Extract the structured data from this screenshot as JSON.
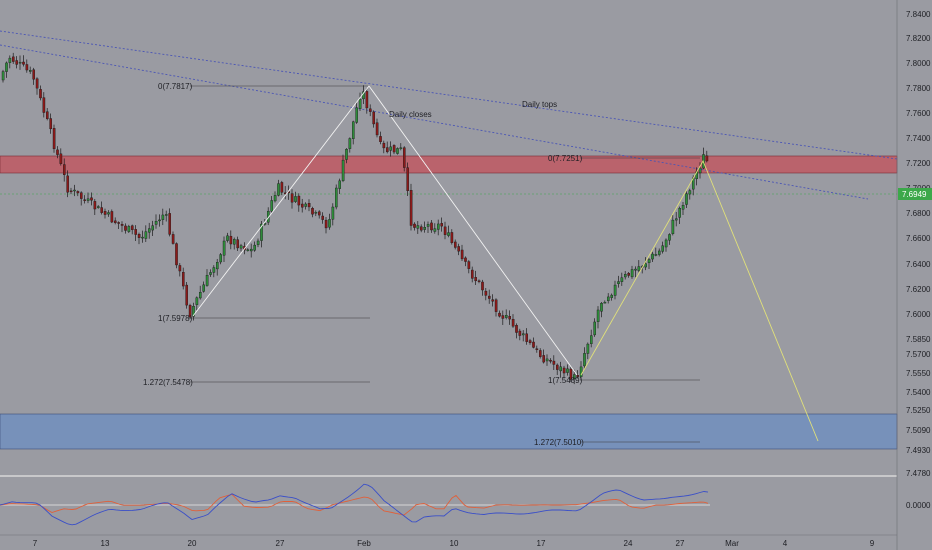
{
  "colors": {
    "background": "#9a9ba2",
    "bull": "#2e8b3a",
    "bear": "#8b1a1a",
    "resistance_zone": "#c4505a",
    "support_zone": "#6b8ec2",
    "trendline": "#4a55b5",
    "zigzag_left": "#f2f2f2",
    "zigzag_right": "#e0e07a",
    "last_price": "#3ca84a",
    "osc_k": "#3a4fc8",
    "osc_d": "#e0603a"
  },
  "price_axis": {
    "ticks": [
      "7.8400",
      "7.8200",
      "7.8000",
      "7.7800",
      "7.7600",
      "7.7400",
      "7.7200",
      "7.7000",
      "7.6800",
      "7.6600",
      "7.6400",
      "7.6200",
      "7.6000",
      "7.5850",
      "7.5700",
      "7.5550",
      "7.5400",
      "7.5250",
      "7.5090",
      "7.4930",
      "7.4780"
    ],
    "last_price_label": "7.6949"
  },
  "time_axis": {
    "ticks": [
      "7",
      "13",
      "20",
      "27",
      "Feb",
      "10",
      "17",
      "24",
      "27",
      "Mar",
      "4",
      "9"
    ]
  },
  "oscillator_axis": {
    "zero_label": "0.0000"
  },
  "annotations": {
    "daily_tops": "Daily tops",
    "daily_closes": "Daily closes",
    "fib_left_top": "0(7.7817)",
    "fib_left_bottom": "1(7.5978)",
    "fib_left_ext": "1.272(7.5478)",
    "fib_right_top": "0(7.7251)",
    "fib_right_bottom": "1(7.5489)",
    "fib_right_ext": "1.272(7.5010)"
  },
  "chart_data": {
    "type": "candlestick",
    "x_range": [
      "Jan 3",
      "Mar 10"
    ],
    "y_range": [
      7.478,
      7.84
    ],
    "resistance_zone": [
      7.711,
      7.724
    ],
    "support_zone": [
      7.498,
      7.522
    ],
    "last_price": 7.6949,
    "waypoints": [
      {
        "x": "Jan 3",
        "close": 7.76
      },
      {
        "x": "Jan 5",
        "close": 7.805
      },
      {
        "x": "Jan 7",
        "close": 7.79
      },
      {
        "x": "Jan 10",
        "close": 7.7
      },
      {
        "x": "Jan 13",
        "close": 7.68
      },
      {
        "x": "Jan 16",
        "close": 7.66
      },
      {
        "x": "Jan 18",
        "close": 7.68
      },
      {
        "x": "Jan 20",
        "close": 7.6
      },
      {
        "x": "Jan 23",
        "close": 7.66
      },
      {
        "x": "Jan 25",
        "close": 7.65
      },
      {
        "x": "Jan 27",
        "close": 7.7
      },
      {
        "x": "Jan 30",
        "close": 7.67
      },
      {
        "x": "Feb 1",
        "close": 7.78
      },
      {
        "x": "Feb 3",
        "close": 7.73
      },
      {
        "x": "Feb 5",
        "close": 7.73
      },
      {
        "x": "Feb 6",
        "close": 7.67
      },
      {
        "x": "Feb 9",
        "close": 7.67
      },
      {
        "x": "Feb 11",
        "close": 7.64
      },
      {
        "x": "Feb 14",
        "close": 7.6
      },
      {
        "x": "Feb 17",
        "close": 7.57
      },
      {
        "x": "Feb 20",
        "close": 7.55
      },
      {
        "x": "Feb 22",
        "close": 7.61
      },
      {
        "x": "Feb 24",
        "close": 7.63
      },
      {
        "x": "Feb 26",
        "close": 7.65
      },
      {
        "x": "Feb 28",
        "close": 7.725
      },
      {
        "x": "Mar 1",
        "close": 7.695
      }
    ],
    "projection": [
      {
        "x": "Feb 28",
        "y": 7.7251
      },
      {
        "x": "Mar 6",
        "y": 7.501
      }
    ]
  }
}
